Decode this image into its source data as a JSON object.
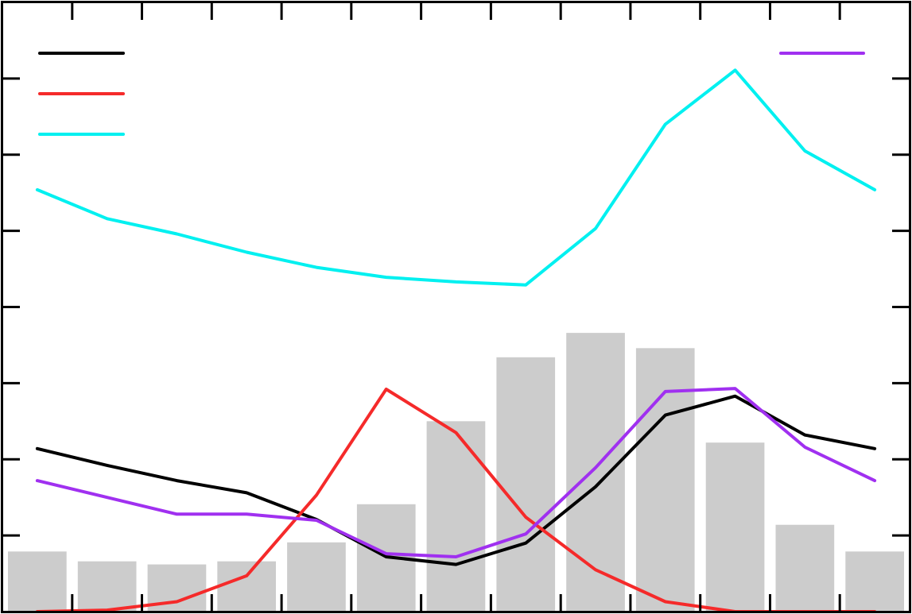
{
  "chart_data": {
    "type": "bar+line",
    "x": [
      1,
      2,
      3,
      4,
      5,
      6,
      7,
      8,
      9,
      10,
      11,
      12,
      13
    ],
    "xlim": [
      0.5,
      13.5
    ],
    "ylim": [
      0,
      8
    ],
    "xticks": [
      1,
      2,
      3,
      4,
      5,
      6,
      7,
      8,
      9,
      10,
      11,
      12,
      13
    ],
    "yticks": [
      0,
      1,
      2,
      3,
      4,
      5,
      6,
      7,
      8
    ],
    "grid": false,
    "legend_left": "top-left",
    "legend_right": "top-right",
    "bars": {
      "color": "#cccccc",
      "values": [
        0.79,
        0.66,
        0.62,
        0.66,
        0.91,
        1.41,
        2.5,
        3.34,
        3.66,
        3.46,
        2.22,
        1.14,
        0.79
      ]
    },
    "series": [
      {
        "id": "black",
        "color": "#000000",
        "legend": "left",
        "values": [
          2.14,
          1.92,
          1.72,
          1.56,
          1.21,
          0.72,
          0.62,
          0.9,
          1.64,
          2.58,
          2.83,
          2.32,
          2.14
        ]
      },
      {
        "id": "red",
        "color": "#f52a2a",
        "legend": "left",
        "values": [
          0.0,
          0.02,
          0.13,
          0.47,
          1.53,
          2.92,
          2.35,
          1.24,
          0.55,
          0.13,
          0.0,
          0.0,
          0.0
        ]
      },
      {
        "id": "cyan",
        "color": "#00f0f0",
        "legend": "left",
        "values": [
          5.54,
          5.16,
          4.96,
          4.72,
          4.52,
          4.39,
          4.33,
          4.29,
          5.03,
          6.4,
          7.11,
          6.05,
          5.54
        ]
      },
      {
        "id": "purple",
        "color": "#a030f0",
        "legend": "right",
        "values": [
          1.72,
          1.5,
          1.28,
          1.28,
          1.2,
          0.76,
          0.72,
          1.02,
          1.89,
          2.89,
          2.93,
          2.16,
          1.72
        ]
      }
    ]
  }
}
